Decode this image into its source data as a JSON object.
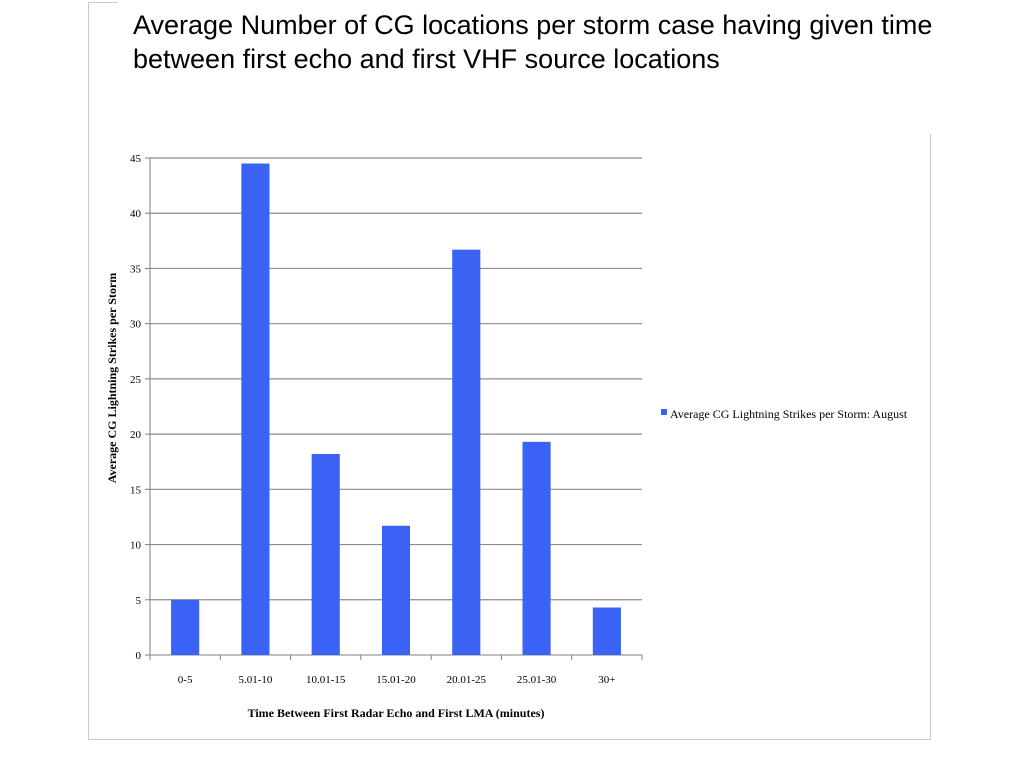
{
  "slide": {
    "title": "Average Number of CG locations per storm case having given time between first echo and first VHF source locations"
  },
  "colors": {
    "bar": "#3a62f5",
    "grid": "#8c8c8c",
    "axis": "#7f7f7f",
    "frame": "#c8c8c8"
  },
  "chart_data": {
    "type": "bar",
    "title": "",
    "xlabel": "Time Between First Radar Echo and First LMA (minutes)",
    "ylabel": "Average CG Lightning Strikes per Storm",
    "ylim": [
      0,
      45
    ],
    "yticks": [
      0,
      5,
      10,
      15,
      20,
      25,
      30,
      35,
      40,
      45
    ],
    "grid": true,
    "legend_position": "right",
    "categories": [
      "0-5",
      "5.01-10",
      "10.01-15",
      "15.01-20",
      "20.01-25",
      "25.01-30",
      "30+"
    ],
    "series": [
      {
        "name": "Average CG Lightning Strikes per Storm: August",
        "values": [
          5.0,
          44.5,
          18.2,
          11.7,
          36.7,
          19.3,
          4.3
        ]
      }
    ]
  }
}
